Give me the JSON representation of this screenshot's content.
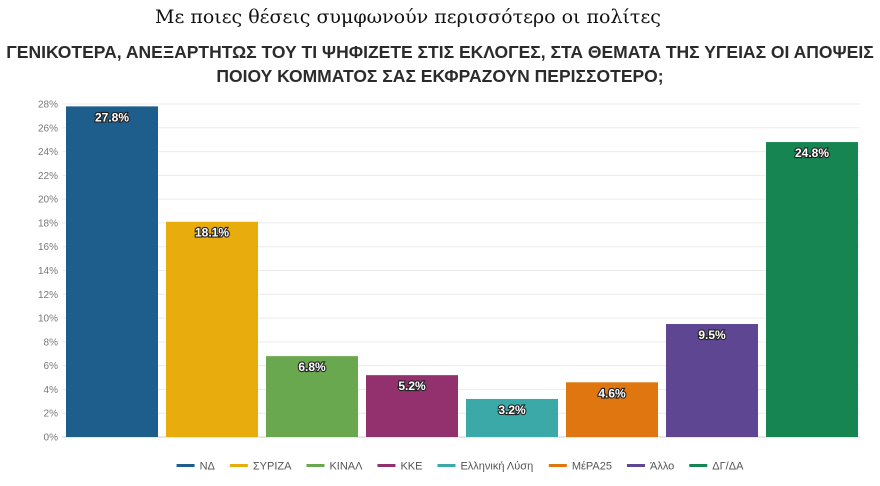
{
  "headline": "Με ποιες θέσεις συμφωνούν περισσότερο οι πολίτες",
  "chart_data": {
    "type": "bar",
    "title_line1": "ΓΕΝΙΚΟΤΕΡΑ, ΑΝΕΞΑΡΤΗΤΩΣ ΤΟΥ ΤΙ ΨΗΦΙΖΕΤΕ ΣΤΙΣ ΕΚΛΟΓΕΣ, ΣΤΑ ΘΕΜΑΤΑ ΤΗΣ ΥΓΕΙΑΣ ΟΙ ΑΠΟΨΕΙΣ",
    "title_line2": "ΠΟΙΟΥ ΚΟΜΜΑΤΟΣ ΣΑΣ ΕΚΦΡΑΖΟΥΝ ΠΕΡΙΣΣΟΤΕΡΟ;",
    "categories": [
      "ΝΔ",
      "ΣΥΡΙΖΑ",
      "ΚΙΝΑΛ",
      "ΚΚΕ",
      "Ελληνική Λύση",
      "ΜέΡΑ25",
      "Άλλο",
      "ΔΓ/ΔΑ"
    ],
    "values": [
      27.8,
      18.1,
      6.8,
      5.2,
      3.2,
      4.6,
      9.5,
      24.8
    ],
    "value_labels": [
      "27.8%",
      "18.1%",
      "6.8%",
      "5.2%",
      "3.2%",
      "4.6%",
      "9.5%",
      "24.8%"
    ],
    "colors": [
      "#1e5e8c",
      "#e8ad0c",
      "#6aa84f",
      "#93306e",
      "#3aa9a7",
      "#e0760f",
      "#5e4692",
      "#168552"
    ],
    "yticks": [
      0,
      2,
      4,
      6,
      8,
      10,
      12,
      14,
      16,
      18,
      20,
      22,
      24,
      26,
      28
    ],
    "ytick_labels": [
      "0%",
      "2%",
      "4%",
      "6%",
      "8%",
      "10%",
      "12%",
      "14%",
      "16%",
      "18%",
      "20%",
      "22%",
      "24%",
      "26%",
      "28%"
    ],
    "ylim": [
      0,
      28
    ],
    "grid": true,
    "legend_position": "bottom"
  }
}
